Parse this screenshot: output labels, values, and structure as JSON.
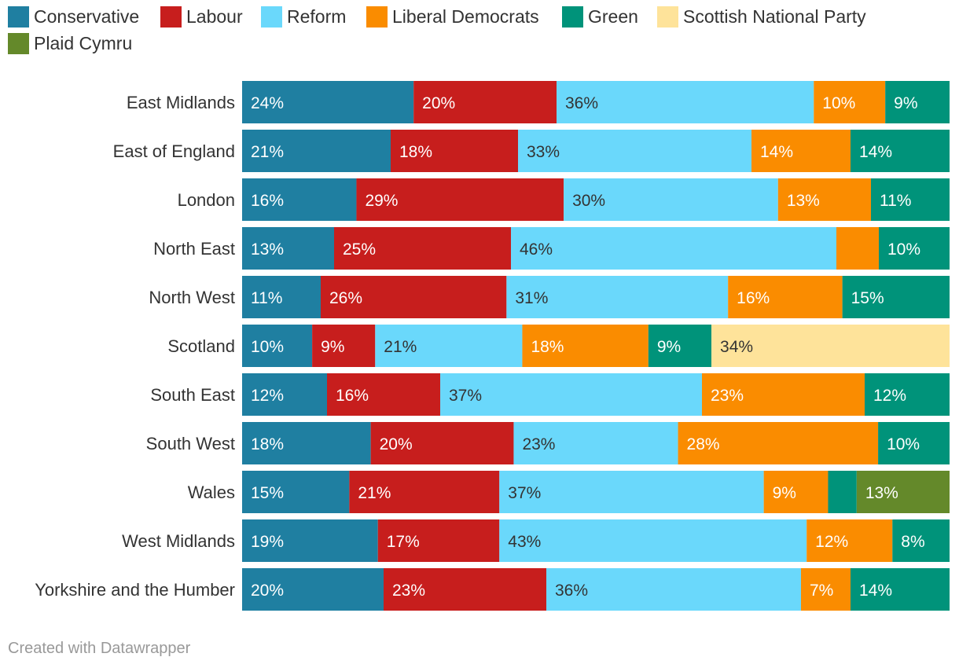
{
  "chart_data": {
    "type": "bar",
    "orientation": "horizontal",
    "stacked": true,
    "value_unit": "%",
    "categories": [
      "East Midlands",
      "East of England",
      "London",
      "North East",
      "North West",
      "Scotland",
      "South East",
      "South West",
      "Wales",
      "West Midlands",
      "Yorkshire and the Humber"
    ],
    "series": [
      {
        "name": "Conservative",
        "color": "#1f7fa1",
        "label_color": "#ffffff",
        "values": [
          24,
          21,
          16,
          13,
          11,
          10,
          12,
          18,
          15,
          19,
          20
        ]
      },
      {
        "name": "Labour",
        "color": "#c71e1d",
        "label_color": "#ffffff",
        "values": [
          20,
          18,
          29,
          25,
          26,
          9,
          16,
          20,
          21,
          17,
          23
        ]
      },
      {
        "name": "Reform",
        "color": "#6ad8fb",
        "label_color": "#333333",
        "values": [
          36,
          33,
          30,
          46,
          31,
          21,
          37,
          23,
          37,
          43,
          36
        ]
      },
      {
        "name": "Liberal Democrats",
        "color": "#fa8c00",
        "label_color": "#ffffff",
        "values": [
          10,
          14,
          13,
          6,
          16,
          18,
          23,
          28,
          9,
          12,
          7
        ]
      },
      {
        "name": "Green",
        "color": "#00937a",
        "label_color": "#ffffff",
        "values": [
          9,
          14,
          11,
          10,
          15,
          9,
          12,
          10,
          4,
          8,
          14
        ]
      },
      {
        "name": "Scottish National Party",
        "color": "#fee39a",
        "label_color": "#333333",
        "values": [
          0,
          0,
          0,
          0,
          0,
          34,
          0,
          0,
          0,
          0,
          0
        ]
      },
      {
        "name": "Plaid Cymru",
        "color": "#64892a",
        "label_color": "#ffffff",
        "values": [
          0,
          0,
          0,
          0,
          0,
          0,
          0,
          0,
          13,
          0,
          0
        ]
      }
    ],
    "hidden_labels": [
      [
        3,
        3
      ],
      [
        8,
        4
      ]
    ],
    "xlim": [
      0,
      100
    ],
    "legend": "top-left",
    "grid": false
  },
  "footer": {
    "credit": "Created with Datawrapper"
  }
}
